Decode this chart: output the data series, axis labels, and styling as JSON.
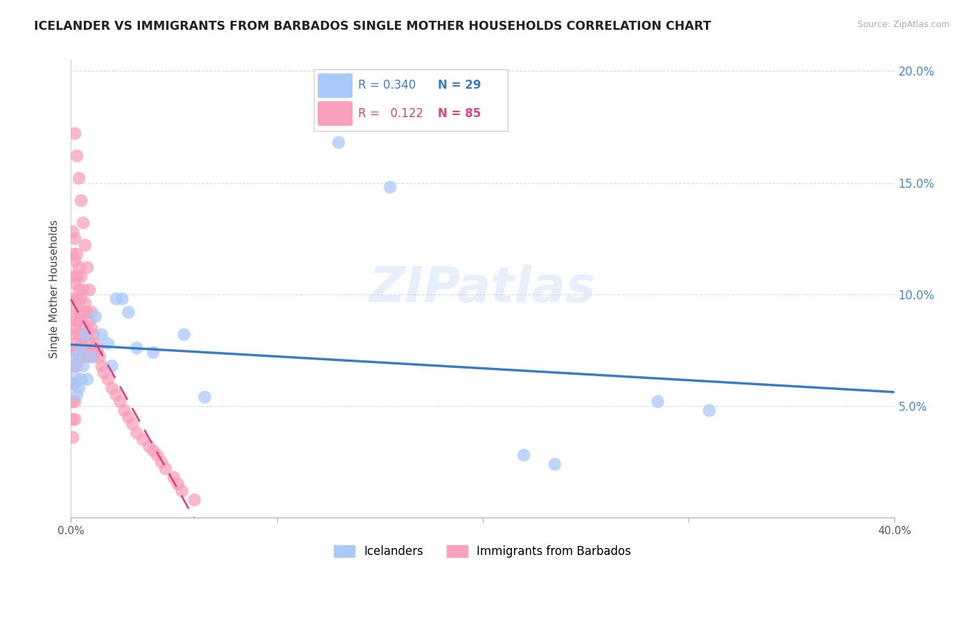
{
  "title": "ICELANDER VS IMMIGRANTS FROM BARBADOS SINGLE MOTHER HOUSEHOLDS CORRELATION CHART",
  "source": "Source: ZipAtlas.com",
  "ylabel": "Single Mother Households",
  "xlim": [
    0.0,
    0.4
  ],
  "ylim": [
    0.0,
    0.205
  ],
  "yticks": [
    0.05,
    0.1,
    0.15,
    0.2
  ],
  "ytick_labels": [
    "5.0%",
    "10.0%",
    "15.0%",
    "20.0%"
  ],
  "color_icelander": "#aac8f8",
  "color_barbados": "#f8a0bc",
  "color_icelander_line": "#3a7cc4",
  "color_barbados_line": "#d84480",
  "background_color": "#ffffff",
  "grid_color": "#d8d8d8",
  "legend_R1": "0.340",
  "legend_N1": "29",
  "legend_R2": "0.122",
  "legend_N2": "85",
  "watermark": "ZIPatlas",
  "icelander_x": [
    0.001,
    0.001,
    0.002,
    0.003,
    0.003,
    0.004,
    0.005,
    0.005,
    0.006,
    0.007,
    0.008,
    0.01,
    0.012,
    0.015,
    0.018,
    0.02,
    0.022,
    0.025,
    0.028,
    0.032,
    0.04,
    0.055,
    0.065,
    0.13,
    0.155,
    0.22,
    0.235,
    0.31,
    0.285
  ],
  "icelander_y": [
    0.068,
    0.06,
    0.063,
    0.072,
    0.055,
    0.058,
    0.075,
    0.062,
    0.068,
    0.082,
    0.062,
    0.072,
    0.09,
    0.082,
    0.078,
    0.068,
    0.098,
    0.098,
    0.092,
    0.076,
    0.074,
    0.082,
    0.054,
    0.168,
    0.148,
    0.028,
    0.024,
    0.048,
    0.052
  ],
  "barbados_x": [
    0.001,
    0.001,
    0.001,
    0.001,
    0.001,
    0.001,
    0.001,
    0.001,
    0.001,
    0.001,
    0.001,
    0.001,
    0.002,
    0.002,
    0.002,
    0.002,
    0.002,
    0.002,
    0.002,
    0.002,
    0.002,
    0.002,
    0.003,
    0.003,
    0.003,
    0.003,
    0.003,
    0.003,
    0.004,
    0.004,
    0.004,
    0.004,
    0.004,
    0.005,
    0.005,
    0.005,
    0.005,
    0.006,
    0.006,
    0.006,
    0.006,
    0.007,
    0.007,
    0.007,
    0.008,
    0.008,
    0.008,
    0.009,
    0.009,
    0.01,
    0.01,
    0.011,
    0.011,
    0.012,
    0.013,
    0.014,
    0.015,
    0.016,
    0.018,
    0.02,
    0.022,
    0.024,
    0.026,
    0.028,
    0.03,
    0.032,
    0.035,
    0.038,
    0.04,
    0.042,
    0.044,
    0.046,
    0.05,
    0.052,
    0.054,
    0.06,
    0.002,
    0.003,
    0.004,
    0.005,
    0.006,
    0.007,
    0.008,
    0.009,
    0.01
  ],
  "barbados_y": [
    0.128,
    0.118,
    0.108,
    0.098,
    0.09,
    0.082,
    0.075,
    0.068,
    0.06,
    0.052,
    0.044,
    0.036,
    0.125,
    0.115,
    0.105,
    0.095,
    0.085,
    0.075,
    0.068,
    0.06,
    0.052,
    0.044,
    0.118,
    0.108,
    0.098,
    0.088,
    0.078,
    0.068,
    0.112,
    0.102,
    0.092,
    0.082,
    0.072,
    0.108,
    0.098,
    0.088,
    0.078,
    0.102,
    0.092,
    0.082,
    0.072,
    0.096,
    0.086,
    0.076,
    0.092,
    0.082,
    0.072,
    0.088,
    0.078,
    0.085,
    0.075,
    0.082,
    0.072,
    0.078,
    0.075,
    0.072,
    0.068,
    0.065,
    0.062,
    0.058,
    0.055,
    0.052,
    0.048,
    0.045,
    0.042,
    0.038,
    0.035,
    0.032,
    0.03,
    0.028,
    0.025,
    0.022,
    0.018,
    0.015,
    0.012,
    0.008,
    0.172,
    0.162,
    0.152,
    0.142,
    0.132,
    0.122,
    0.112,
    0.102,
    0.092
  ]
}
